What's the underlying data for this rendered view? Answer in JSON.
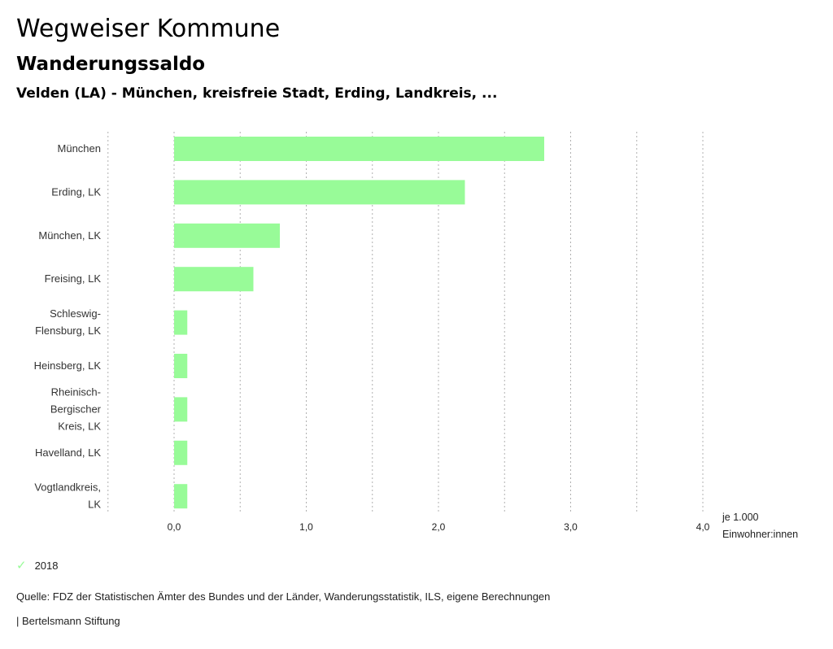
{
  "header": {
    "title": "Wegweiser Kommune",
    "subtitle": "Wanderungssaldo",
    "region": "Velden (LA) - München, kreisfreie Stadt, Erding, Landkreis, ..."
  },
  "chart_data": {
    "type": "bar",
    "orientation": "horizontal",
    "categories": [
      [
        "München"
      ],
      [
        "Erding, LK"
      ],
      [
        "München, LK"
      ],
      [
        "Freising, LK"
      ],
      [
        "Schleswig-",
        "Flensburg, LK"
      ],
      [
        "Heinsberg, LK"
      ],
      [
        "Rheinisch-",
        "Bergischer",
        "Kreis, LK"
      ],
      [
        "Havelland, LK"
      ],
      [
        "Vogtlandkreis,",
        "LK"
      ]
    ],
    "series": [
      {
        "name": "2018",
        "color": "#98fb98",
        "values": [
          2.8,
          2.2,
          0.8,
          0.6,
          0.1,
          0.1,
          0.1,
          0.1,
          0.1
        ]
      }
    ],
    "xlim": [
      -0.5,
      4.0
    ],
    "xticks": [
      0,
      1,
      2,
      3,
      4
    ],
    "xtick_labels": [
      "0,0",
      "1,0",
      "2,0",
      "3,0",
      "4,0"
    ],
    "gridlines": [
      -0.5,
      0,
      0.5,
      1,
      1.5,
      2,
      2.5,
      3,
      3.5,
      4
    ],
    "unit_label": [
      "je 1.000",
      "Einwohner:innen"
    ],
    "grid": true,
    "legend_position": "bottom-left"
  },
  "legend": {
    "label": "2018",
    "icon": "check-icon"
  },
  "footer": {
    "source": "Quelle: FDZ der Statistischen Ämter des Bundes und der Länder, Wanderungsstatistik, ILS, eigene Berechnungen",
    "credit": "| Bertelsmann Stiftung"
  }
}
